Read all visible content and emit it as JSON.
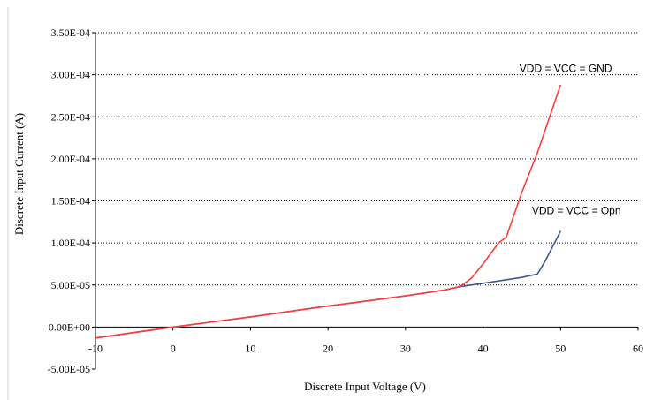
{
  "chart_data": {
    "type": "line",
    "xlabel": "Discrete Input Voltage (V)",
    "ylabel": "Discrete Input Current (A)",
    "xlim": [
      -10,
      60
    ],
    "ylim": [
      -5e-05,
      0.00035
    ],
    "x_ticks": [
      -10,
      0,
      10,
      20,
      30,
      40,
      50,
      60
    ],
    "x_tick_labels": [
      "-10",
      "0",
      "10",
      "20",
      "30",
      "40",
      "50",
      "60"
    ],
    "y_ticks": [
      -5e-05,
      0,
      5e-05,
      0.0001,
      0.00015,
      0.0002,
      0.00025,
      0.0003,
      0.00035
    ],
    "y_tick_labels": [
      "-5.00E-05",
      "0.00E+00",
      "5.00E-05",
      "1.00E-04",
      "1.50E-04",
      "2.00E-04",
      "2.50E-04",
      "3.00E-04",
      "3.50E-04"
    ],
    "grid": "horizontal-dotted",
    "series": [
      {
        "name": "VDD = VCC = GND",
        "color": "#ff3b3b",
        "x": [
          -10,
          0,
          10,
          20,
          30,
          35,
          37,
          38.5,
          40,
          42,
          43,
          45,
          47,
          50
        ],
        "y": [
          -1.3e-05,
          0,
          1.2e-05,
          2.5e-05,
          3.7e-05,
          4.4e-05,
          4.8e-05,
          5.8e-05,
          7.5e-05,
          0.0001,
          0.000107,
          0.00016,
          0.000207,
          0.000288
        ]
      },
      {
        "name": "VDD = VCC = Opn",
        "color": "#3c5a8c",
        "x": [
          -10,
          0,
          10,
          20,
          30,
          35,
          37,
          40,
          45,
          47,
          48,
          50
        ],
        "y": [
          -1.3e-05,
          0,
          1.2e-05,
          2.5e-05,
          3.7e-05,
          4.4e-05,
          4.8e-05,
          5.2e-05,
          5.9e-05,
          6.3e-05,
          7.8e-05,
          0.000114
        ]
      }
    ],
    "annotations": [
      {
        "text": "VDD = VCC = GND",
        "x": 44.7,
        "y": 0.0003
      },
      {
        "text": "VDD = VCC = Opn",
        "x": 46.3,
        "y": 0.000131
      }
    ]
  }
}
